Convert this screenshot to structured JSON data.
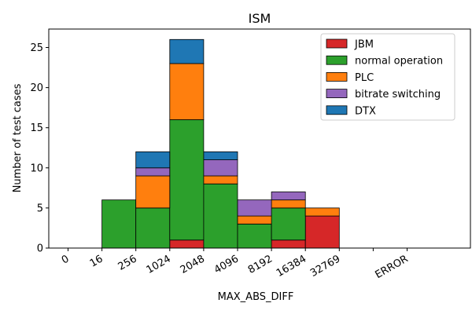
{
  "chart_data": {
    "type": "bar",
    "stacked": true,
    "title": "ISM",
    "xlabel": "MAX_ABS_DIFF",
    "ylabel": "Number of test cases",
    "ylim": [
      0,
      27.3
    ],
    "yticks": [
      0,
      5,
      10,
      15,
      20,
      25
    ],
    "xticks": [
      "0",
      "16",
      "256",
      "1024",
      "2048",
      "4096",
      "8192",
      "16384",
      "32769",
      "",
      "ERROR"
    ],
    "bins": [
      "0-16",
      "16-256",
      "256-1024",
      "1024-2048",
      "2048-4096",
      "4096-8192",
      "8192-16384",
      "16384-32769",
      "32769-",
      "-ERROR",
      "ERROR-"
    ],
    "series": [
      {
        "name": "JBM",
        "color": "#d62728",
        "values": [
          0,
          0,
          0,
          1,
          0,
          0,
          1,
          4,
          0,
          0,
          0
        ]
      },
      {
        "name": "normal operation",
        "color": "#2ca02c",
        "values": [
          0,
          6,
          5,
          15,
          8,
          3,
          4,
          0,
          0,
          0,
          0
        ]
      },
      {
        "name": "PLC",
        "color": "#ff7f0e",
        "values": [
          0,
          0,
          4,
          7,
          1,
          1,
          1,
          1,
          0,
          0,
          0
        ]
      },
      {
        "name": "bitrate switching",
        "color": "#9467bd",
        "values": [
          0,
          0,
          1,
          0,
          2,
          2,
          1,
          0,
          0,
          0,
          0
        ]
      },
      {
        "name": "DTX",
        "color": "#1f77b4",
        "values": [
          0,
          0,
          2,
          3,
          1,
          0,
          0,
          0,
          0,
          0,
          0
        ]
      }
    ],
    "legend_position": "top-right",
    "grid": false
  }
}
